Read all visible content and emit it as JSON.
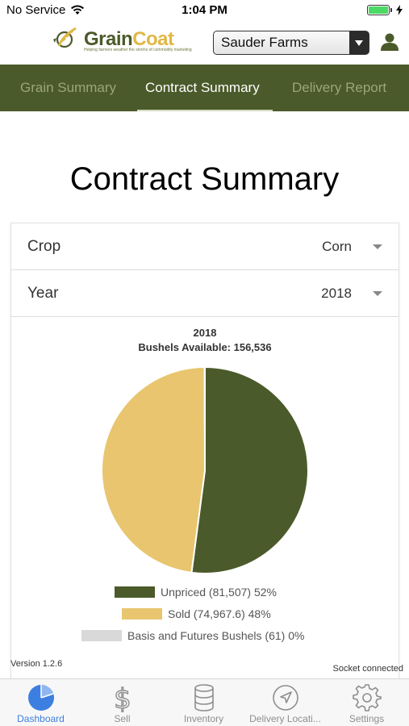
{
  "status_bar": {
    "carrier": "No Service",
    "time": "1:04 PM"
  },
  "header": {
    "logo_grain": "Grain",
    "logo_coat": "Coat",
    "logo_tagline": "Helping farmers weather the storms of commodity marketing",
    "farm_select": "Sauder Farms"
  },
  "tabs": [
    {
      "label": "Grain Summary"
    },
    {
      "label": "Contract Summary"
    },
    {
      "label": "Delivery Report"
    }
  ],
  "page_title": "Contract Summary",
  "filters": {
    "crop": {
      "label": "Crop",
      "value": "Corn"
    },
    "year": {
      "label": "Year",
      "value": "2018"
    }
  },
  "chart_data": {
    "type": "pie",
    "title": "2018",
    "subtitle": "Bushels Available: 156,536",
    "slices": [
      {
        "label": "Unpriced (81,507) 52%",
        "value": 81507,
        "color": "#4b5a2a"
      },
      {
        "label": "Sold (74,967.6) 48%",
        "value": 74967.6,
        "color": "#e8c56e"
      },
      {
        "label": "Basis and Futures Bushels (61) 0%",
        "value": 61,
        "color": "#d9d9d9"
      }
    ]
  },
  "footer": {
    "version": "Version 1.2.6",
    "socket": "Socket connected"
  },
  "bottom_nav": [
    {
      "label": "Dashboard",
      "icon": "dashboard-icon"
    },
    {
      "label": "Sell",
      "icon": "dollar-icon"
    },
    {
      "label": "Inventory",
      "icon": "grain-bin-icon"
    },
    {
      "label": "Delivery Locati...",
      "icon": "navigation-arrow-icon"
    },
    {
      "label": "Settings",
      "icon": "gear-icon"
    }
  ]
}
